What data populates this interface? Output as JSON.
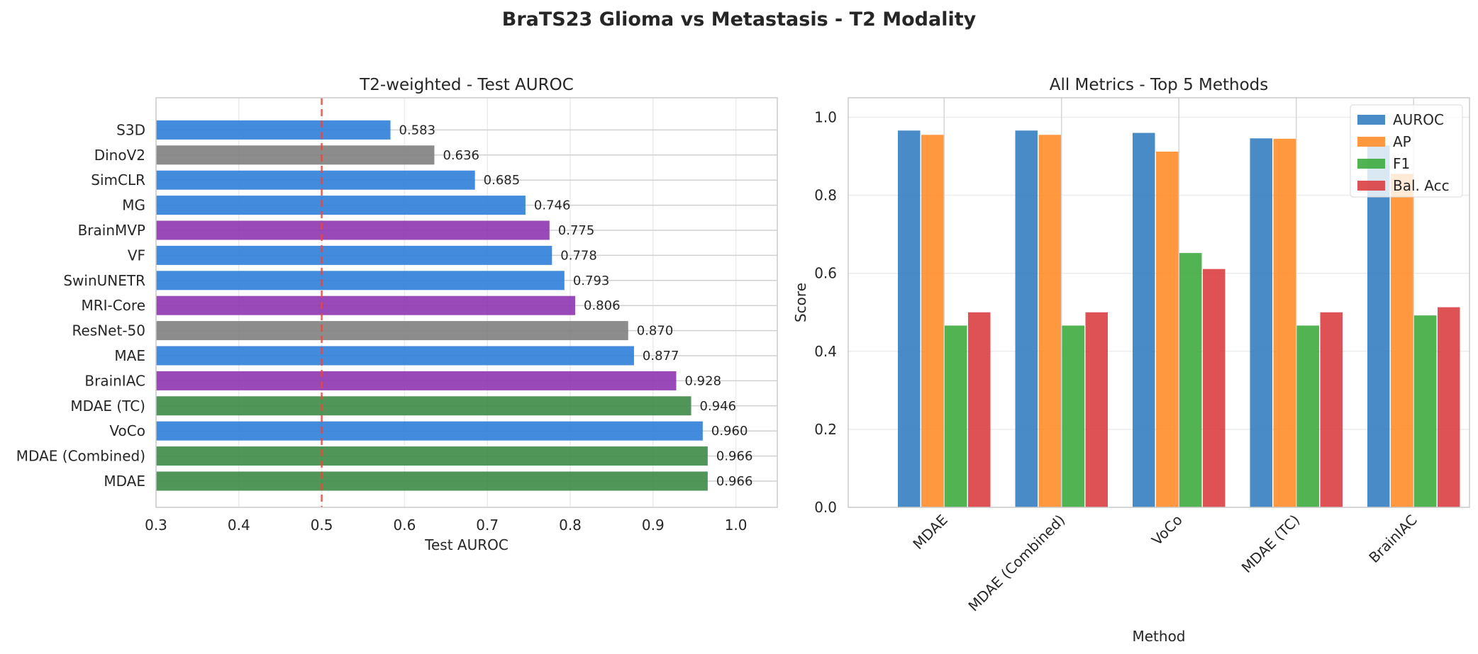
{
  "figure": {
    "title": "BraTS23 Glioma vs Metastasis - T2 Modality"
  },
  "chart_data": [
    {
      "type": "bar",
      "orientation": "horizontal",
      "title": "T2-weighted - Test AUROC",
      "xlabel": "Test AUROC",
      "ylabel": "",
      "xlim": [
        0.3,
        1.05
      ],
      "xticks": [
        "0.3",
        "0.4",
        "0.5",
        "0.6",
        "0.7",
        "0.8",
        "0.9",
        "1.0"
      ],
      "grid": true,
      "reference_line": {
        "x": 0.5,
        "style": "dashed",
        "color": "#e8483f"
      },
      "categories": [
        "MDAE",
        "MDAE (Combined)",
        "VoCo",
        "MDAE (TC)",
        "BrainIAC",
        "MAE",
        "ResNet-50",
        "MRI-Core",
        "SwinUNETR",
        "VF",
        "BrainMVP",
        "MG",
        "SimCLR",
        "DinoV2",
        "S3D"
      ],
      "values": [
        0.966,
        0.966,
        0.96,
        0.946,
        0.928,
        0.877,
        0.87,
        0.806,
        0.793,
        0.778,
        0.775,
        0.746,
        0.685,
        0.636,
        0.583
      ],
      "value_labels": [
        "0.966",
        "0.966",
        "0.960",
        "0.946",
        "0.928",
        "0.877",
        "0.870",
        "0.806",
        "0.793",
        "0.778",
        "0.775",
        "0.746",
        "0.685",
        "0.636",
        "0.583"
      ],
      "bar_colors": [
        "#3d8b47",
        "#3d8b47",
        "#2f7ed8",
        "#3d8b47",
        "#8e35b0",
        "#2f7ed8",
        "#808080",
        "#8e35b0",
        "#2f7ed8",
        "#2f7ed8",
        "#8e35b0",
        "#2f7ed8",
        "#2f7ed8",
        "#808080",
        "#2f7ed8"
      ]
    },
    {
      "type": "bar",
      "title": "All Metrics - Top 5 Methods",
      "xlabel": "Method",
      "ylabel": "Score",
      "ylim": [
        0.0,
        1.05
      ],
      "yticks": [
        "0.0",
        "0.2",
        "0.4",
        "0.6",
        "0.8",
        "1.0"
      ],
      "grid": true,
      "legend": "top-right",
      "categories": [
        "MDAE",
        "MDAE (Combined)",
        "VoCo",
        "MDAE (TC)",
        "BrainIAC"
      ],
      "series": [
        {
          "name": "AUROC",
          "color": "#2f7bbf",
          "values": [
            0.966,
            0.966,
            0.96,
            0.946,
            0.928
          ]
        },
        {
          "name": "AP",
          "color": "#ff8a24",
          "values": [
            0.955,
            0.955,
            0.912,
            0.945,
            0.855
          ]
        },
        {
          "name": "F1",
          "color": "#3aa83a",
          "values": [
            0.466,
            0.466,
            0.652,
            0.466,
            0.492
          ]
        },
        {
          "name": "Bal. Acc",
          "color": "#d93a3d",
          "values": [
            0.5,
            0.5,
            0.611,
            0.5,
            0.513
          ]
        }
      ]
    }
  ]
}
